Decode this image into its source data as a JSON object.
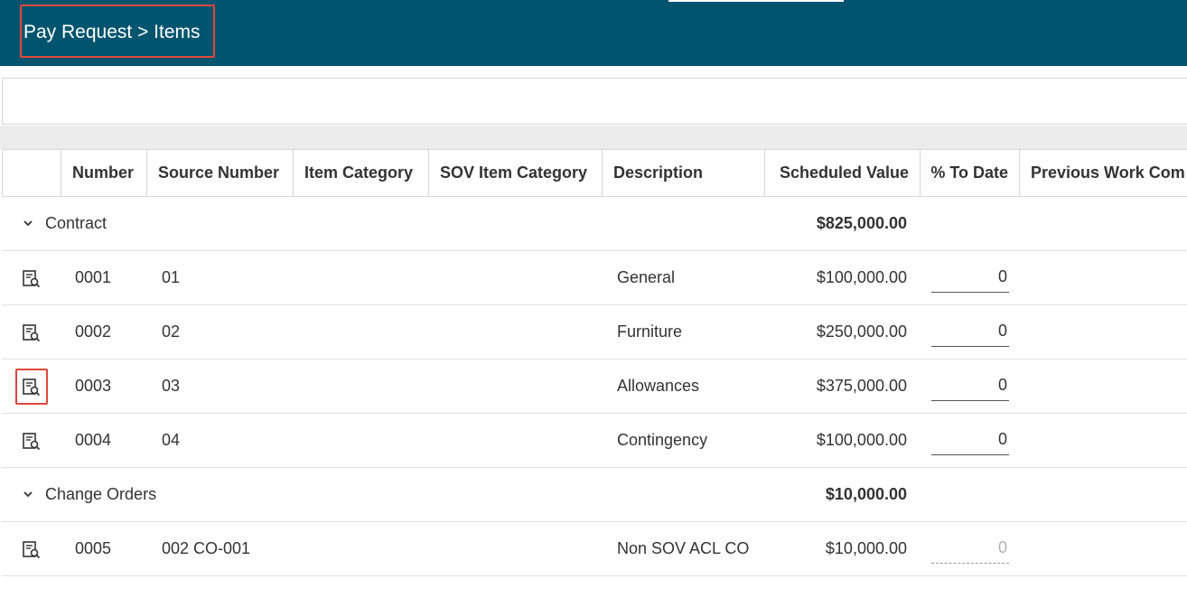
{
  "header": {
    "breadcrumb": "Pay Request > Items"
  },
  "colors": {
    "header_bg": "#00546e",
    "highlight": "#e0473d"
  },
  "table": {
    "columns": [
      "",
      "Number",
      "Source Number",
      "Item Category",
      "SOV Item Category",
      "Description",
      "Scheduled Value",
      "% To Date",
      "Previous Work Com"
    ],
    "groups": [
      {
        "label": "Contract",
        "total": "$825,000.00",
        "rows": [
          {
            "icon": "view-details-icon",
            "number": "0001",
            "source_number": "01",
            "description": "General",
            "scheduled_value": "$100,000.00",
            "pct_to_date": "0"
          },
          {
            "icon": "view-details-icon",
            "number": "0002",
            "source_number": "02",
            "description": "Furniture",
            "scheduled_value": "$250,000.00",
            "pct_to_date": "0"
          },
          {
            "icon": "view-details-icon",
            "number": "0003",
            "source_number": "03",
            "description": "Allowances",
            "scheduled_value": "$375,000.00",
            "pct_to_date": "0"
          },
          {
            "icon": "view-details-icon",
            "number": "0004",
            "source_number": "04",
            "description": "Contingency",
            "scheduled_value": "$100,000.00",
            "pct_to_date": "0"
          }
        ]
      },
      {
        "label": "Change Orders",
        "total": "$10,000.00",
        "rows": [
          {
            "icon": "view-details-icon",
            "number": "0005",
            "source_number": "002 CO-001",
            "description": "Non SOV ACL CO",
            "scheduled_value": "$10,000.00",
            "pct_to_date": "0"
          }
        ]
      }
    ]
  }
}
